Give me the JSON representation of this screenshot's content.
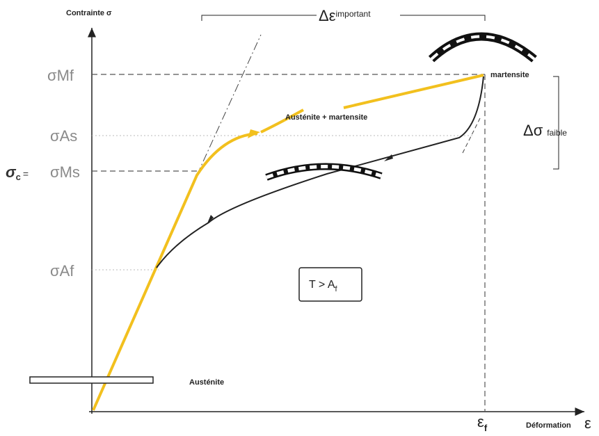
{
  "axes": {
    "y_label": "Contrainte σ",
    "x_label": "Déformation",
    "x_symbol": "ε"
  },
  "strain_range": {
    "symbol": "Δε",
    "label": "important"
  },
  "stress_range": {
    "symbol": "Δσ",
    "label": "faible"
  },
  "levels": {
    "mf": "σMf",
    "as": "σAs",
    "ms": "σMs",
    "af": "σAf"
  },
  "critical": {
    "symbol": "σ",
    "sub": "c",
    "equals": "="
  },
  "phases": {
    "martensite": "martensite",
    "mixed": "Austénite + martensite",
    "austenite": "Austénite"
  },
  "condition": {
    "main": "T > A",
    "sub": "f"
  },
  "final_strain": {
    "symbol": "ε",
    "sub": "f"
  }
}
